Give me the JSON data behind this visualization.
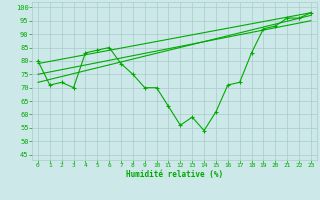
{
  "background_color": "#cce8e8",
  "grid_color": "#aacccc",
  "line_color": "#00aa00",
  "marker_color": "#00aa00",
  "xlabel": "Humidité relative (%)",
  "xlabel_color": "#00aa00",
  "tick_color": "#00aa00",
  "ylim": [
    43,
    102
  ],
  "xlim": [
    -0.5,
    23.5
  ],
  "yticks": [
    45,
    50,
    55,
    60,
    65,
    70,
    75,
    80,
    85,
    90,
    95,
    100
  ],
  "xticks": [
    0,
    1,
    2,
    3,
    4,
    5,
    6,
    7,
    8,
    9,
    10,
    11,
    12,
    13,
    14,
    15,
    16,
    17,
    18,
    19,
    20,
    21,
    22,
    23
  ],
  "series1": [
    80,
    71,
    72,
    70,
    83,
    84,
    85,
    79,
    75,
    70,
    70,
    63,
    56,
    59,
    54,
    61,
    71,
    72,
    83,
    92,
    93,
    96,
    96,
    98
  ],
  "series2_x": [
    0,
    23
  ],
  "series2_y": [
    79,
    98
  ],
  "series3_x": [
    0,
    23
  ],
  "series3_y": [
    72,
    97
  ],
  "series4_x": [
    0,
    23
  ],
  "series4_y": [
    75,
    95
  ]
}
